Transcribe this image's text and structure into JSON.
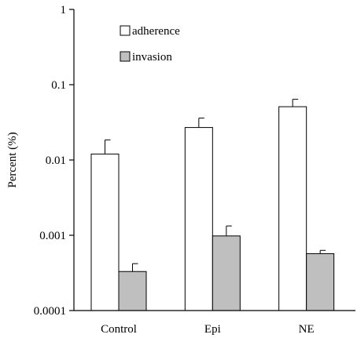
{
  "chart_data": {
    "type": "bar",
    "scale": "log",
    "categories": [
      "Control",
      "Epi",
      "NE"
    ],
    "series": [
      {
        "name": "adherence",
        "color": "#ffffff",
        "values": [
          0.012,
          0.027,
          0.051
        ],
        "errors": [
          0.0065,
          0.009,
          0.013
        ]
      },
      {
        "name": "invasion",
        "color": "#bfbfbf",
        "values": [
          0.00033,
          0.00098,
          0.00057
        ],
        "errors": [
          9e-05,
          0.00035,
          6e-05
        ]
      }
    ],
    "ylim": [
      0.0001,
      1
    ],
    "yticks": [
      "0.0001",
      "0.001",
      "0.01",
      "0.1",
      "1"
    ],
    "ylabel": "Percent (%)",
    "xlabel": "",
    "legend_position": "top-left",
    "grid": false
  }
}
